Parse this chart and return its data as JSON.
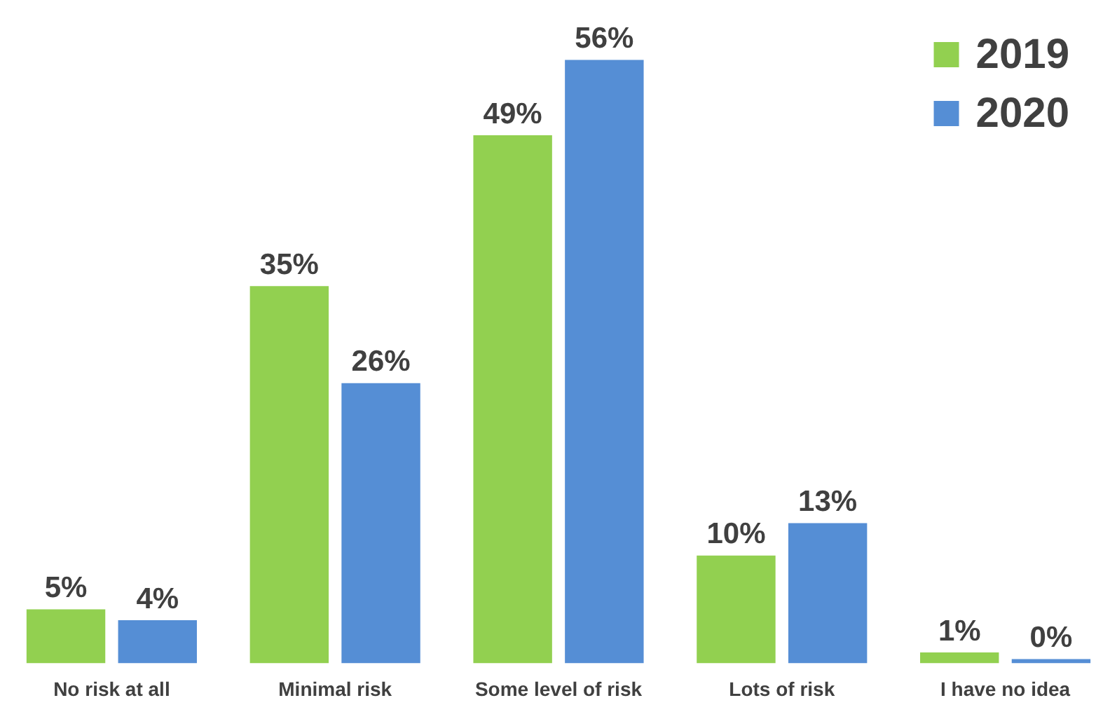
{
  "chart_data": {
    "type": "bar",
    "categories": [
      "No risk at all",
      "Minimal risk",
      "Some level of risk",
      "Lots of risk",
      "I have no idea"
    ],
    "legend": "top right",
    "series": [
      {
        "name": "2019",
        "color": "#92d050",
        "values": [
          5,
          35,
          49,
          10,
          1
        ],
        "value_labels": [
          "5%",
          "35%",
          "49%",
          "10%",
          "1%"
        ]
      },
      {
        "name": "2020",
        "color": "#558ed5",
        "values": [
          4,
          26,
          56,
          13,
          0
        ],
        "value_labels": [
          "4%",
          "26%",
          "56%",
          "13%",
          "0%"
        ]
      }
    ]
  }
}
